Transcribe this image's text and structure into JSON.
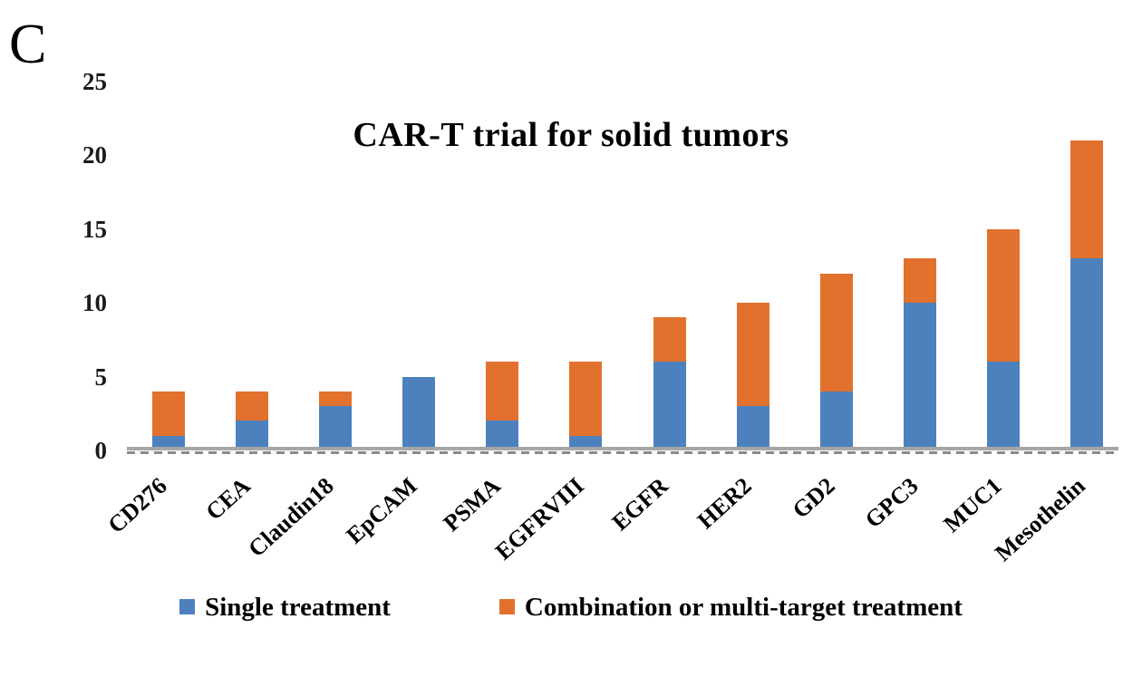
{
  "panel_label": "C",
  "chart_data": {
    "type": "bar",
    "stacked": true,
    "title": "CAR-T trial for solid tumors",
    "categories": [
      "CD276",
      "CEA",
      "Claudin18",
      "EpCAM",
      "PSMA",
      "EGFRVIII",
      "EGFR",
      "HER2",
      "GD2",
      "GPC3",
      "MUC1",
      "Mesothelin"
    ],
    "series": [
      {
        "name": "Single treatment",
        "color": "#4D81BE",
        "values": [
          1,
          2,
          3,
          5,
          2,
          1,
          6,
          3,
          4,
          10,
          6,
          13
        ]
      },
      {
        "name": "Combination or multi-target treatment",
        "color": "#E2712E",
        "values": [
          3,
          2,
          1,
          0,
          4,
          5,
          3,
          7,
          8,
          3,
          9,
          8
        ]
      }
    ],
    "totals": [
      4,
      4,
      4,
      5,
      6,
      6,
      9,
      10,
      12,
      13,
      15,
      21
    ],
    "xlabel": "",
    "ylabel": "",
    "ylim": [
      0,
      25
    ],
    "yticks": [
      0,
      5,
      10,
      15,
      20,
      25
    ],
    "grid": false,
    "legend_position": "bottom",
    "axis_color": "#A6A6A6",
    "tick_dash_color": "#8B8B8B",
    "text_color": "#000000",
    "background_color": "#FFFFFF"
  }
}
